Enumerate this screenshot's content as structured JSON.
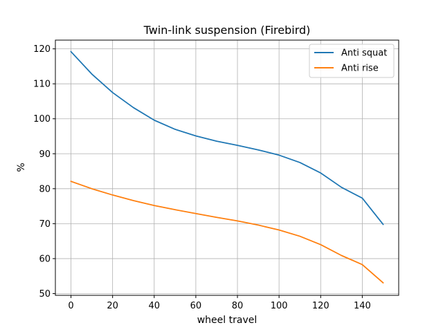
{
  "chart_data": {
    "type": "line",
    "title": "Twin-link suspension (Firebird)",
    "xlabel": "wheel travel",
    "ylabel": "%",
    "xlim": [
      -7.5,
      157.5
    ],
    "ylim": [
      49.5,
      122.5
    ],
    "xticks": [
      0,
      20,
      40,
      60,
      80,
      100,
      120,
      140
    ],
    "yticks": [
      50,
      60,
      70,
      80,
      90,
      100,
      110,
      120
    ],
    "grid": true,
    "legend_position": "top-right",
    "x": [
      0,
      10,
      20,
      30,
      40,
      50,
      60,
      70,
      80,
      90,
      100,
      110,
      120,
      130,
      140,
      150
    ],
    "series": [
      {
        "name": "Anti squat",
        "color": "#1f77b4",
        "values": [
          119.2,
          112.8,
          107.5,
          103.2,
          99.6,
          97.0,
          95.1,
          93.6,
          92.4,
          91.1,
          89.6,
          87.5,
          84.5,
          80.4,
          77.3,
          69.8
        ]
      },
      {
        "name": "Anti rise",
        "color": "#ff7f0e",
        "values": [
          82.1,
          80.0,
          78.2,
          76.6,
          75.2,
          74.0,
          72.9,
          71.8,
          70.8,
          69.6,
          68.2,
          66.4,
          64.0,
          60.9,
          58.3,
          53.1
        ]
      }
    ]
  }
}
